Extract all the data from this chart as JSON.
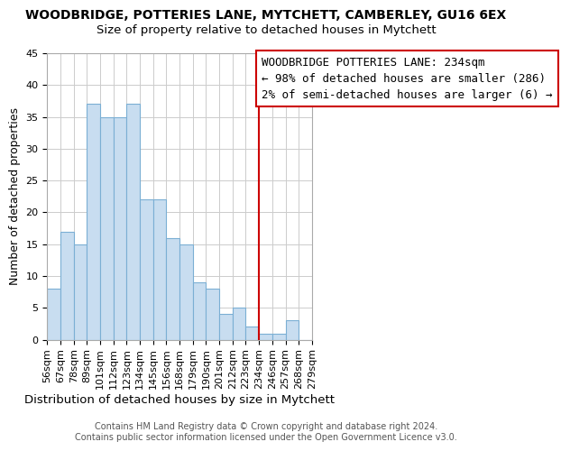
{
  "title": "WOODBRIDGE, POTTERIES LANE, MYTCHETT, CAMBERLEY, GU16 6EX",
  "subtitle": "Size of property relative to detached houses in Mytchett",
  "xlabel": "Distribution of detached houses by size in Mytchett",
  "ylabel": "Number of detached properties",
  "bar_labels": [
    "56sqm",
    "67sqm",
    "78sqm",
    "89sqm",
    "101sqm",
    "112sqm",
    "123sqm",
    "134sqm",
    "145sqm",
    "156sqm",
    "168sqm",
    "179sqm",
    "190sqm",
    "201sqm",
    "212sqm",
    "223sqm",
    "234sqm",
    "246sqm",
    "257sqm",
    "268sqm",
    "279sqm"
  ],
  "bar_values": [
    8,
    17,
    15,
    37,
    35,
    35,
    37,
    22,
    22,
    16,
    15,
    9,
    8,
    4,
    5,
    2,
    1,
    1,
    3,
    0
  ],
  "bar_color": "#c8ddf0",
  "bar_edge_color": "#7bafd4",
  "vline_label": "234sqm",
  "vline_color": "#cc0000",
  "ylim": [
    0,
    45
  ],
  "yticks": [
    0,
    5,
    10,
    15,
    20,
    25,
    30,
    35,
    40,
    45
  ],
  "annotation_title": "WOODBRIDGE POTTERIES LANE: 234sqm",
  "annotation_line1": "← 98% of detached houses are smaller (286)",
  "annotation_line2": "2% of semi-detached houses are larger (6) →",
  "annotation_box_color": "#ffffff",
  "annotation_box_edge": "#cc0000",
  "footer1": "Contains HM Land Registry data © Crown copyright and database right 2024.",
  "footer2": "Contains public sector information licensed under the Open Government Licence v3.0.",
  "title_fontsize": 10,
  "subtitle_fontsize": 9.5,
  "xlabel_fontsize": 9.5,
  "ylabel_fontsize": 9,
  "tick_fontsize": 8,
  "annotation_fontsize": 9,
  "footer_fontsize": 7,
  "background_color": "#ffffff",
  "grid_color": "#cccccc"
}
